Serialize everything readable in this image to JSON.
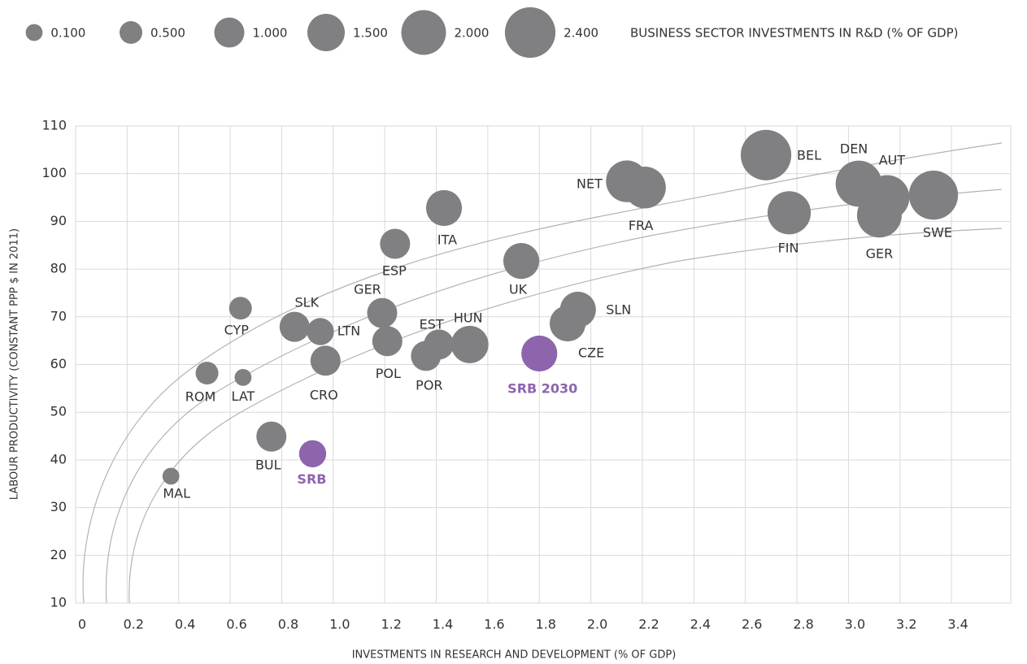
{
  "chart_data": {
    "type": "bubble",
    "xlabel": "INVESTMENTS IN RESEARCH AND DEVELOPMENT (% OF GDP)",
    "ylabel": "LABOUR PRODUCTIVITY (CONSTANT PPP $ IN 2011)",
    "size_legend_title": "BUSINESS SECTOR INVESTMENTS IN R&D (% OF GDP)",
    "size_legend": [
      {
        "value": 0.1,
        "label": "0.100"
      },
      {
        "value": 0.5,
        "label": "0.500"
      },
      {
        "value": 1,
        "label": "1.000"
      },
      {
        "value": 1.5,
        "label": "1.500"
      },
      {
        "value": 2,
        "label": "2.000"
      },
      {
        "value": 2.4,
        "label": "2.400"
      }
    ],
    "xlim": [
      0,
      3.63
    ],
    "xticks": [
      0,
      0.2,
      0.4,
      0.6,
      0.8,
      {
        "value": 1,
        "label": "1.0"
      },
      1.2,
      1.4,
      1.6,
      1.8,
      {
        "value": 2,
        "label": "2.0"
      },
      2.2,
      2.4,
      2.6,
      2.8,
      {
        "value": 3,
        "label": "3.0"
      },
      3.2,
      3.4
    ],
    "ylim": [
      10,
      110
    ],
    "yticks": [
      10,
      20,
      30,
      40,
      50,
      60,
      70,
      80,
      90,
      100,
      110
    ],
    "grid": true,
    "labels": [
      "MAL",
      "ROM",
      "LAT",
      "CYP",
      "BUL",
      "SRB",
      "SLK",
      "LTN",
      "CRO",
      "GER",
      "POL",
      "ESP",
      "ITA",
      "EST",
      "POR",
      "HUN",
      "UK",
      "SLN",
      "CZE",
      "SRB 2030",
      "NET",
      "FRA",
      "BEL",
      "FIN",
      "DEN",
      "AUT",
      "GER",
      "SWE"
    ],
    "x": [
      0.37,
      0.51,
      0.65,
      0.64,
      0.76,
      0.92,
      0.85,
      0.95,
      0.97,
      1.19,
      1.21,
      1.24,
      1.43,
      1.41,
      1.36,
      1.53,
      1.73,
      1.95,
      1.91,
      1.8,
      2.14,
      2.21,
      2.68,
      2.77,
      3.04,
      3.15,
      3.12,
      3.33
    ],
    "values": [
      36.6,
      58.2,
      57.3,
      71.8,
      44.9,
      41.3,
      67.9,
      66.9,
      60.8,
      70.8,
      64.9,
      85.3,
      92.8,
      64.2,
      61.8,
      64.2,
      81.7,
      71.5,
      68.6,
      62.3,
      98.4,
      97.1,
      103.9,
      91.8,
      97.9,
      95,
      91.3,
      95.5
    ],
    "sizes": [
      0.1,
      0.5,
      0.1,
      0.5,
      1,
      0.8,
      1,
      0.8,
      1,
      1,
      1,
      1,
      1.4,
      1,
      1,
      1.5,
      1.4,
      1.4,
      1.4,
      1.4,
      1.8,
      1.8,
      2.4,
      1.9,
      2.1,
      2,
      2,
      2.3
    ],
    "colors": [
      "#808083",
      "#808083",
      "#808083",
      "#808083",
      "#808083",
      "#8e64ad",
      "#808083",
      "#808083",
      "#808083",
      "#808083",
      "#808083",
      "#808083",
      "#808083",
      "#808083",
      "#808083",
      "#808083",
      "#808083",
      "#808083",
      "#808083",
      "#8e64ad",
      "#808083",
      "#808083",
      "#808083",
      "#808083",
      "#808083",
      "#808083",
      "#808083",
      "#808083"
    ],
    "legend_color": "#808083"
  }
}
